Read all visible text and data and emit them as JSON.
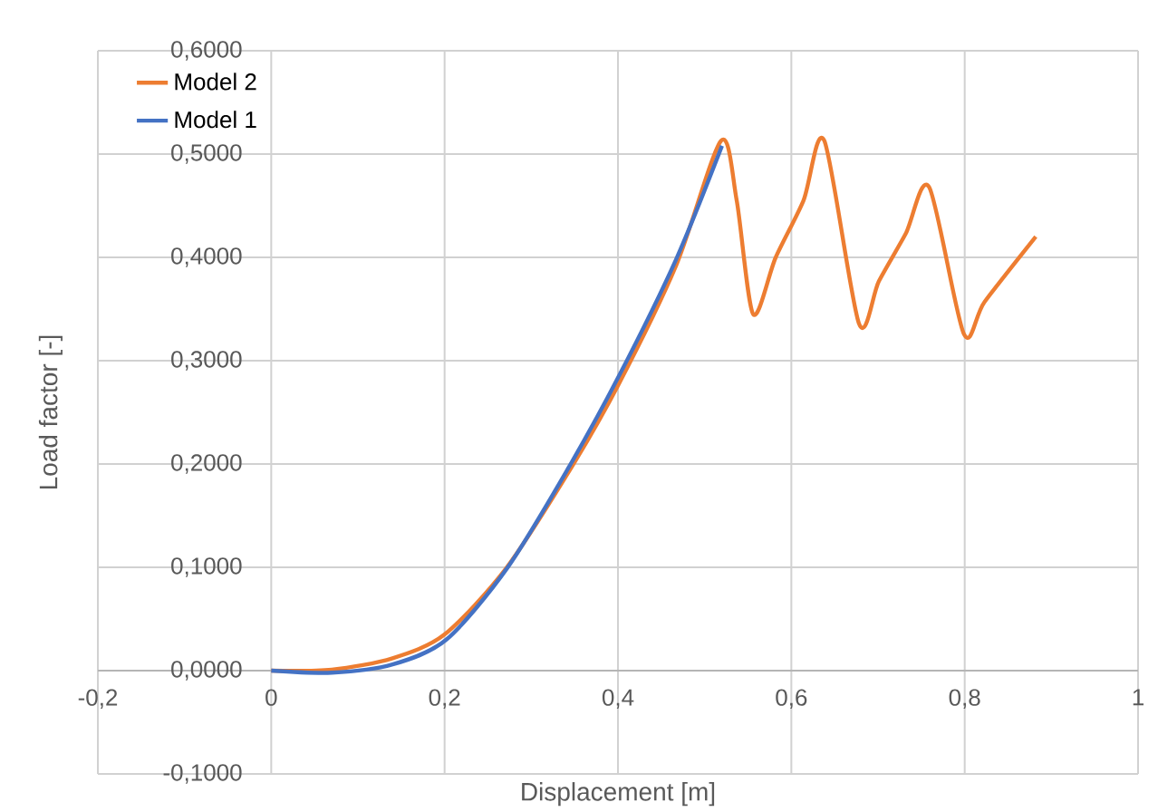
{
  "chart_data": {
    "type": "line",
    "xlabel": "Displacement [m]",
    "ylabel": "Load factor [-]",
    "xlim": [
      -0.2,
      1
    ],
    "ylim": [
      -0.1,
      0.6
    ],
    "xticks": [
      {
        "value": -0.2,
        "label": "-0,2"
      },
      0,
      {
        "value": 0.2,
        "label": "0,2"
      },
      {
        "value": 0.4,
        "label": "0,4"
      },
      {
        "value": 0.6,
        "label": "0,6"
      },
      {
        "value": 0.8,
        "label": "0,8"
      },
      1
    ],
    "yticks": [
      {
        "value": -0.1,
        "label": "-0,1000"
      },
      {
        "value": 0,
        "label": "0,0000"
      },
      {
        "value": 0.1,
        "label": "0,1000"
      },
      {
        "value": 0.2,
        "label": "0,2000"
      },
      {
        "value": 0.3,
        "label": "0,3000"
      },
      {
        "value": 0.4,
        "label": "0,4000"
      },
      {
        "value": 0.5,
        "label": "0,5000"
      },
      {
        "value": 0.6,
        "label": "0,6000"
      }
    ],
    "grid": true,
    "legend": "top left",
    "series": [
      {
        "name": "Model 2",
        "color": "#ed7d31",
        "x": [
          0,
          0.07,
          0.14,
          0.2,
          0.27,
          0.34,
          0.4,
          0.467,
          0.519,
          0.537,
          0.556,
          0.582,
          0.614,
          0.638,
          0.678,
          0.701,
          0.732,
          0.759,
          0.799,
          0.823,
          0.882
        ],
        "values": [
          0,
          0.001,
          0.012,
          0.035,
          0.098,
          0.188,
          0.276,
          0.392,
          0.513,
          0.455,
          0.345,
          0.4,
          0.455,
          0.513,
          0.336,
          0.377,
          0.423,
          0.468,
          0.326,
          0.357,
          0.42
        ]
      },
      {
        "name": "Model 1",
        "color": "#4472c4",
        "x": [
          0,
          0.07,
          0.14,
          0.202,
          0.272,
          0.342,
          0.401,
          0.467,
          0.52
        ],
        "values": [
          0,
          -0.002,
          0.006,
          0.03,
          0.099,
          0.195,
          0.285,
          0.398,
          0.508
        ]
      }
    ]
  }
}
